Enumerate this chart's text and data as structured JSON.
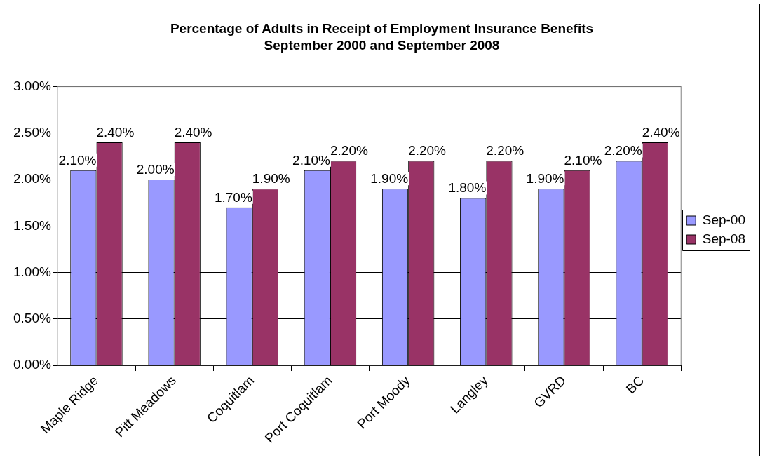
{
  "chart_data": {
    "type": "bar",
    "title": "Percentage of Adults in Receipt of Employment Insurance Benefits",
    "subtitle": "September 2000 and September 2008",
    "categories": [
      "Maple Ridge",
      "Pitt Meadows",
      "Coquitlam",
      "Port Coquitlam",
      "Port Moody",
      "Langley",
      "GVRD",
      "BC"
    ],
    "series": [
      {
        "name": "Sep-00",
        "color": "#9999ff",
        "values": [
          2.1,
          2.0,
          1.7,
          2.1,
          1.9,
          1.8,
          1.9,
          2.2
        ],
        "value_labels": [
          "2.10%",
          "2.00%",
          "1.70%",
          "2.10%",
          "1.90%",
          "1.80%",
          "1.90%",
          "2.20%"
        ]
      },
      {
        "name": "Sep-08",
        "color": "#993366",
        "values": [
          2.4,
          2.4,
          1.9,
          2.2,
          2.2,
          2.2,
          2.1,
          2.4
        ],
        "value_labels": [
          "2.40%",
          "2.40%",
          "1.90%",
          "2.20%",
          "2.20%",
          "2.20%",
          "2.10%",
          "2.40%"
        ]
      }
    ],
    "ylim": [
      0,
      3
    ],
    "yticks": [
      {
        "value": 0,
        "label": "0.00%"
      },
      {
        "value": 0.5,
        "label": "0.50%"
      },
      {
        "value": 1,
        "label": "1.00%"
      },
      {
        "value": 1.5,
        "label": "1.50%"
      },
      {
        "value": 2,
        "label": "2.00%"
      },
      {
        "value": 2.5,
        "label": "2.50%"
      },
      {
        "value": 3,
        "label": "3.00%"
      }
    ],
    "grid": "y",
    "legend": "right"
  }
}
